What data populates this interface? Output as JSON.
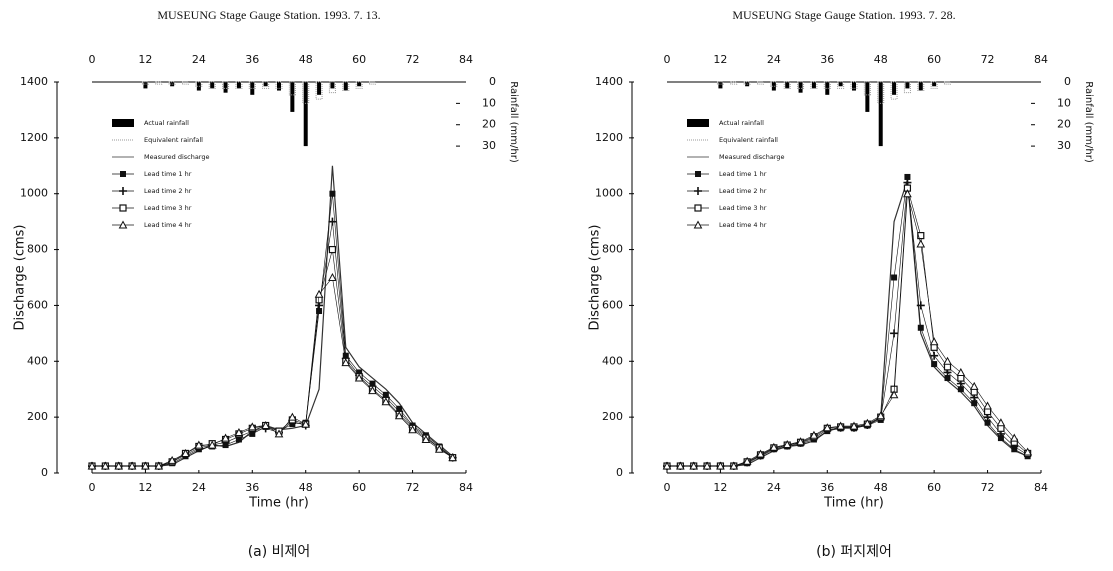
{
  "chart_data": [
    {
      "type": "line",
      "title": "MUSEUNG  Stage Gauge Station. 1993. 7. 13.",
      "caption": "(a) 비제어",
      "xlabel": "Time (hr)",
      "ylabel": "Discharge (cms)",
      "y2label": "Rainfall (mm/hr)",
      "xlim": [
        0,
        84
      ],
      "xticks": [
        0,
        12,
        24,
        36,
        48,
        60,
        72,
        84
      ],
      "ylim": [
        0,
        1400
      ],
      "yticks": [
        0,
        200,
        400,
        600,
        800,
        1000,
        1200,
        1400
      ],
      "y2lim": [
        0,
        183
      ],
      "y2ticks": [
        0,
        10,
        20,
        30
      ],
      "y2_inverted": true,
      "x": [
        0,
        3,
        6,
        9,
        12,
        15,
        18,
        21,
        24,
        27,
        30,
        33,
        36,
        39,
        42,
        45,
        48,
        51,
        54,
        57,
        60,
        63,
        66,
        69,
        72,
        75,
        78,
        81
      ],
      "series": [
        {
          "name": "Actual rainfall",
          "marker": "bar",
          "axis": "y2",
          "color": "#000000",
          "values": [
            0,
            0,
            0,
            0,
            3,
            0,
            2,
            0,
            4,
            3,
            5,
            3,
            6,
            2,
            4,
            14,
            30,
            6,
            3,
            4,
            2,
            0,
            0,
            0,
            0,
            0,
            0,
            0
          ]
        },
        {
          "name": "Equivalent rainfall",
          "marker": "dotted-bar",
          "axis": "y2",
          "color": "#999999",
          "values": [
            0,
            0,
            0,
            0,
            1,
            1,
            1,
            1,
            2,
            3,
            3,
            3,
            3,
            3,
            3,
            6,
            10,
            8,
            5,
            4,
            3,
            1,
            0,
            0,
            0,
            0,
            0,
            0
          ]
        },
        {
          "name": "Measured discharge",
          "marker": "line",
          "color": "#333333",
          "values": [
            25,
            25,
            25,
            25,
            25,
            25,
            30,
            55,
            80,
            100,
            95,
            110,
            150,
            170,
            155,
            160,
            170,
            300,
            1100,
            450,
            380,
            340,
            300,
            250,
            180,
            140,
            100,
            60
          ]
        },
        {
          "name": "Lead time  1 hr",
          "marker": "square",
          "color": "#111111",
          "values": [
            25,
            25,
            25,
            25,
            25,
            25,
            35,
            60,
            85,
            95,
            100,
            120,
            140,
            165,
            150,
            175,
            180,
            580,
            1000,
            420,
            360,
            320,
            280,
            230,
            170,
            135,
            95,
            55
          ]
        },
        {
          "name": "Lead time  2 hr",
          "marker": "plus",
          "color": "#111111",
          "values": [
            25,
            25,
            25,
            25,
            25,
            25,
            40,
            65,
            90,
            100,
            110,
            130,
            150,
            160,
            145,
            185,
            170,
            600,
            900,
            410,
            350,
            310,
            270,
            220,
            165,
            130,
            90,
            55
          ]
        },
        {
          "name": "Lead time  3 hr",
          "marker": "open-square",
          "color": "#111111",
          "values": [
            25,
            25,
            25,
            25,
            25,
            25,
            40,
            70,
            95,
            105,
            120,
            140,
            160,
            170,
            150,
            190,
            175,
            620,
            800,
            400,
            345,
            300,
            260,
            210,
            160,
            125,
            90,
            55
          ]
        },
        {
          "name": "Lead time  4 hr",
          "marker": "triangle",
          "color": "#111111",
          "values": [
            25,
            25,
            25,
            25,
            25,
            25,
            45,
            70,
            100,
            100,
            125,
            145,
            165,
            170,
            140,
            200,
            175,
            640,
            700,
            395,
            340,
            295,
            255,
            205,
            155,
            120,
            85,
            55
          ]
        }
      ]
    },
    {
      "type": "line",
      "title": "MUSEUNG  Stage Gauge Station. 1993. 7. 28.",
      "caption": "(b) 퍼지제어",
      "xlabel": "Time (hr)",
      "ylabel": "Discharge (cms)",
      "y2label": "Rainfall (mm/hr)",
      "xlim": [
        0,
        84
      ],
      "xticks": [
        0,
        12,
        24,
        36,
        48,
        60,
        72,
        84
      ],
      "ylim": [
        0,
        1400
      ],
      "yticks": [
        0,
        200,
        400,
        600,
        800,
        1000,
        1200,
        1400
      ],
      "y2lim": [
        0,
        183
      ],
      "y2ticks": [
        0,
        10,
        20,
        30
      ],
      "y2_inverted": true,
      "x": [
        0,
        3,
        6,
        9,
        12,
        15,
        18,
        21,
        24,
        27,
        30,
        33,
        36,
        39,
        42,
        45,
        48,
        51,
        54,
        57,
        60,
        63,
        66,
        69,
        72,
        75,
        78,
        81
      ],
      "series": [
        {
          "name": "Actual rainfall",
          "marker": "bar",
          "axis": "y2",
          "color": "#000000",
          "values": [
            0,
            0,
            0,
            0,
            3,
            0,
            2,
            0,
            4,
            3,
            5,
            3,
            6,
            2,
            4,
            14,
            30,
            6,
            3,
            4,
            2,
            0,
            0,
            0,
            0,
            0,
            0,
            0
          ]
        },
        {
          "name": "Equivalent rainfall",
          "marker": "dotted-bar",
          "axis": "y2",
          "color": "#999999",
          "values": [
            0,
            0,
            0,
            0,
            1,
            1,
            1,
            1,
            2,
            3,
            3,
            3,
            3,
            3,
            3,
            6,
            10,
            8,
            5,
            4,
            3,
            1,
            0,
            0,
            0,
            0,
            0,
            0
          ]
        },
        {
          "name": "Measured discharge",
          "marker": "line",
          "color": "#333333",
          "values": [
            25,
            25,
            25,
            25,
            25,
            25,
            30,
            55,
            80,
            95,
            100,
            115,
            150,
            165,
            165,
            170,
            200,
            900,
            1050,
            500,
            380,
            330,
            290,
            240,
            170,
            120,
            80,
            60
          ]
        },
        {
          "name": "Lead time  1 hr",
          "marker": "square",
          "color": "#111111",
          "values": [
            25,
            25,
            25,
            25,
            25,
            25,
            35,
            60,
            85,
            95,
            105,
            120,
            150,
            160,
            160,
            170,
            190,
            700,
            1060,
            520,
            390,
            340,
            300,
            250,
            180,
            125,
            85,
            60
          ]
        },
        {
          "name": "Lead time  2 hr",
          "marker": "plus",
          "color": "#111111",
          "values": [
            25,
            25,
            25,
            25,
            25,
            25,
            38,
            62,
            88,
            98,
            108,
            125,
            155,
            162,
            162,
            172,
            195,
            500,
            1040,
            600,
            420,
            360,
            320,
            270,
            200,
            140,
            95,
            65
          ]
        },
        {
          "name": "Lead time  3 hr",
          "marker": "open-square",
          "color": "#111111",
          "values": [
            25,
            25,
            25,
            25,
            25,
            25,
            40,
            65,
            90,
            100,
            110,
            130,
            160,
            165,
            165,
            175,
            200,
            300,
            1020,
            850,
            450,
            380,
            340,
            290,
            220,
            160,
            110,
            70
          ]
        },
        {
          "name": "Lead time  4 hr",
          "marker": "triangle",
          "color": "#111111",
          "values": [
            25,
            25,
            25,
            25,
            25,
            25,
            42,
            68,
            92,
            102,
            112,
            135,
            162,
            168,
            168,
            178,
            205,
            280,
            1000,
            820,
            470,
            400,
            360,
            310,
            240,
            180,
            125,
            75
          ]
        }
      ]
    }
  ]
}
